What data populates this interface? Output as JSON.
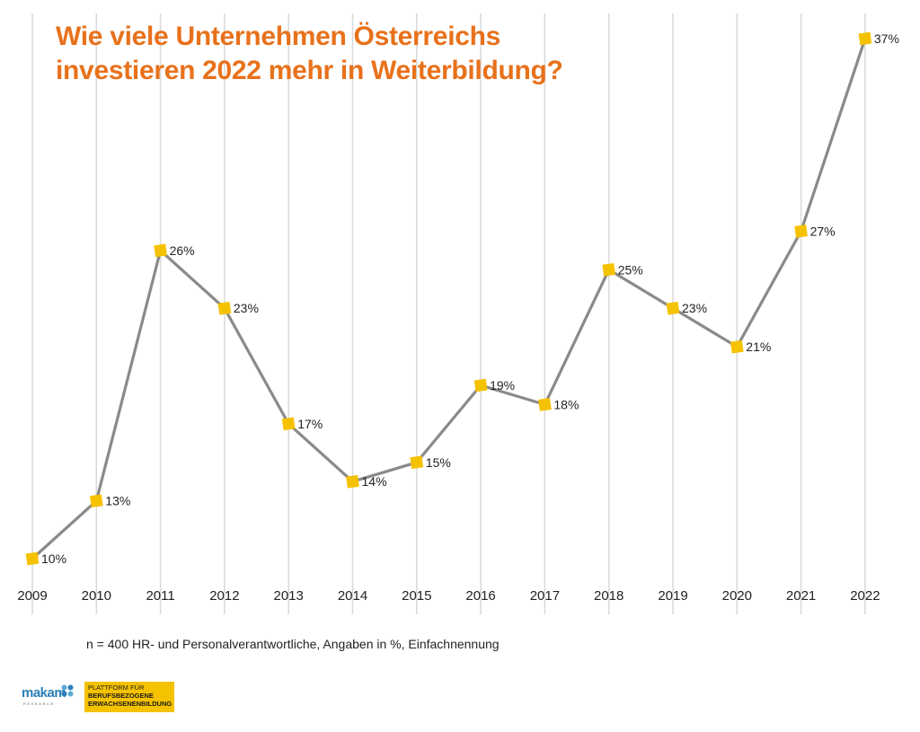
{
  "title_lines": [
    "Wie viele Unternehmen Österreichs",
    "investieren 2022 mehr in Weiterbildung?"
  ],
  "note": "n = 400 HR- und Personalverantwortliche, Angaben in %, Einfachnennung",
  "logos": {
    "makam": "makam",
    "makam_sub": "RESEARCH",
    "plattform_lines": [
      "PLATTFORM FÜR",
      "BERUFSBEZOGENE",
      "ERWACHSENENBILDUNG"
    ]
  },
  "colors": {
    "title": "#e8711b",
    "line": "#8a8a8a",
    "marker": "#f5c200",
    "grid": "#d9d9d9"
  },
  "chart_data": {
    "type": "line",
    "title": "Wie viele Unternehmen Österreichs investieren 2022 mehr in Weiterbildung?",
    "xlabel": "",
    "ylabel": "",
    "categories": [
      "2009",
      "2010",
      "2011",
      "2012",
      "2013",
      "2014",
      "2015",
      "2016",
      "2017",
      "2018",
      "2019",
      "2020",
      "2021",
      "2022"
    ],
    "values": [
      10,
      13,
      26,
      23,
      17,
      14,
      15,
      19,
      18,
      25,
      23,
      21,
      27,
      37
    ],
    "value_labels": [
      "10%",
      "13%",
      "26%",
      "23%",
      "17%",
      "14%",
      "15%",
      "19%",
      "18%",
      "25%",
      "23%",
      "21%",
      "27%",
      "37%"
    ],
    "ylim": [
      10,
      37
    ],
    "grid": "vertical",
    "legend": "none"
  }
}
